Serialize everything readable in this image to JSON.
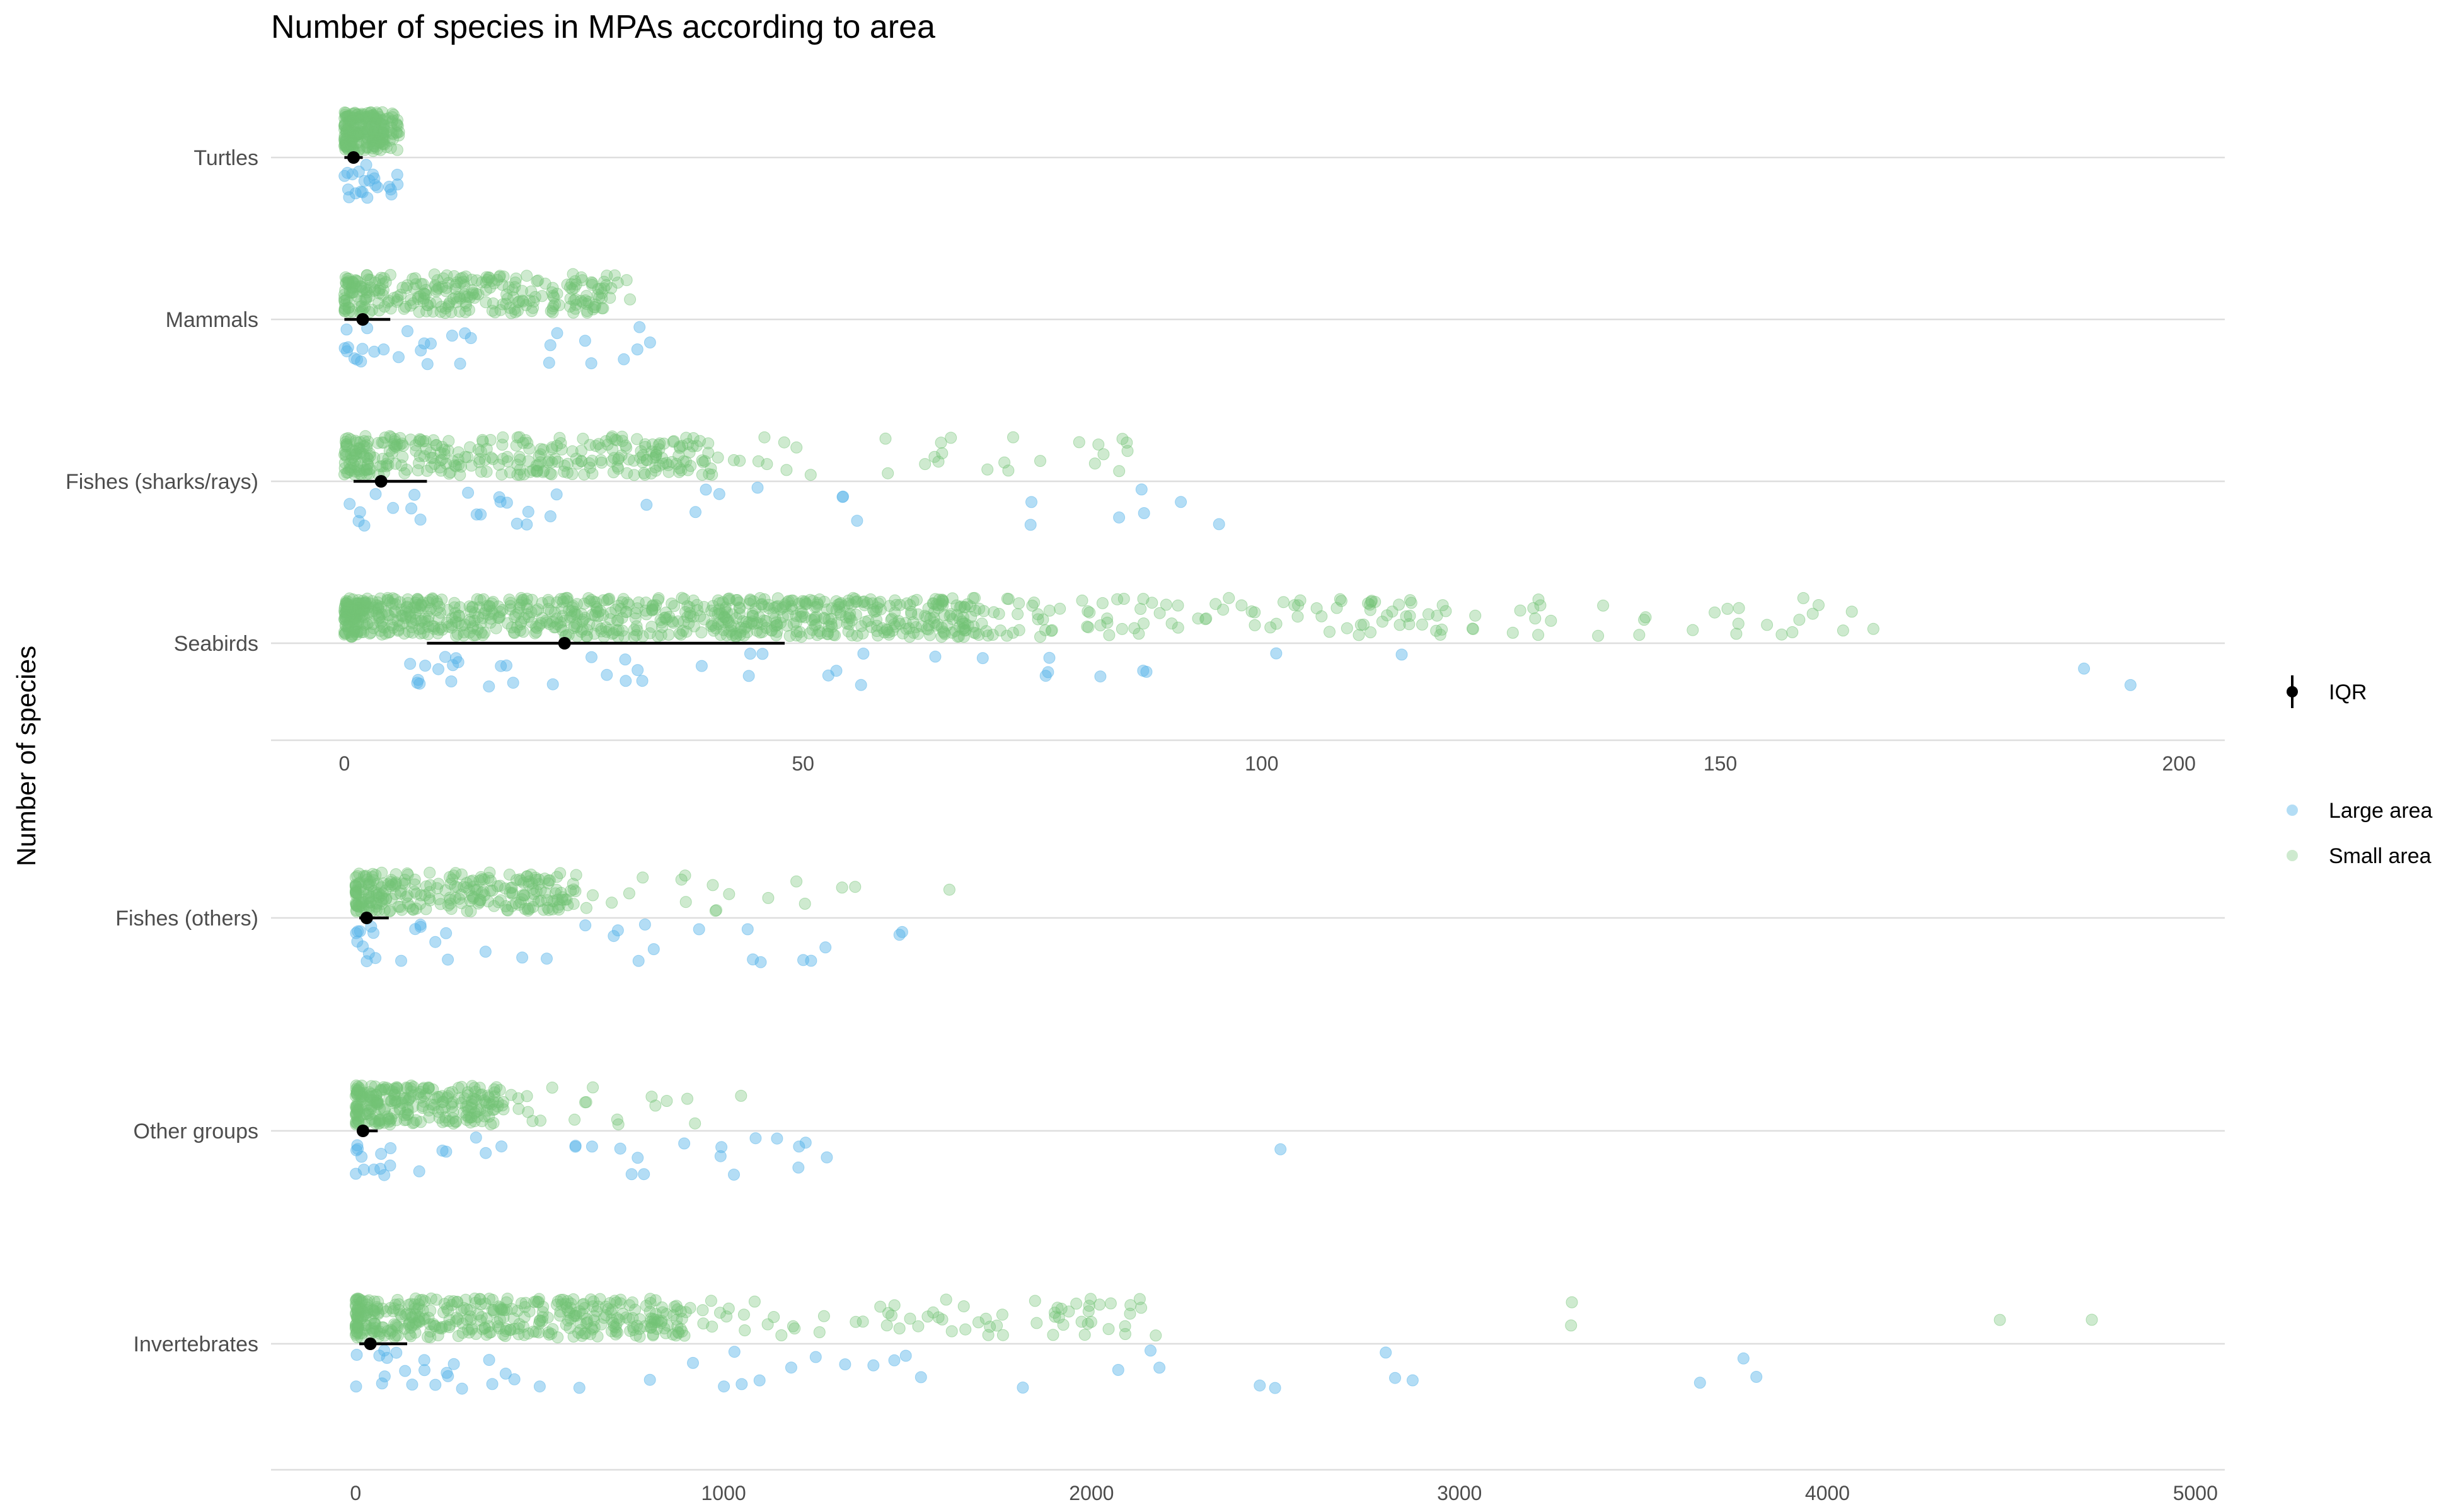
{
  "title": "Number of species in MPAs according to area",
  "ylabel": "Number of species",
  "legend": {
    "iqr_label": "IQR",
    "large_label": "Large area",
    "small_label": "Small area",
    "placement": "right"
  },
  "colors": {
    "large": "#56B4E9",
    "small": "#74C476",
    "summary": "#000000",
    "grid": "#dedede"
  },
  "chart_data": [
    {
      "type": "scatter",
      "panel": "top",
      "xlim": [
        -8,
        205
      ],
      "xticks": [
        0,
        50,
        100,
        150,
        200
      ],
      "xtick_labels": [
        "0",
        "50",
        "100",
        "150",
        "200"
      ],
      "categories": [
        "Turtles",
        "Mammals",
        "Fishes (sharks/rays)",
        "Seabirds"
      ],
      "summary": [
        {
          "category": "Turtles",
          "median": 1,
          "q1": 0,
          "q3": 2
        },
        {
          "category": "Mammals",
          "median": 2,
          "q1": 0,
          "q3": 5
        },
        {
          "category": "Fishes (sharks/rays)",
          "median": 4,
          "q1": 1,
          "q3": 9
        },
        {
          "category": "Seabirds",
          "median": 24,
          "q1": 9,
          "q3": 48
        }
      ],
      "series": [
        {
          "name": "Small area",
          "points": [
            {
              "category": "Turtles",
              "count": 220,
              "range": [
                0,
                6
              ]
            },
            {
              "category": "Mammals",
              "count": 260,
              "range": [
                0,
                30
              ]
            },
            {
              "category": "Mammals",
              "count": 25,
              "range": [
                10,
                34
              ]
            },
            {
              "category": "Fishes (sharks/rays)",
              "count": 300,
              "range": [
                0,
                40
              ]
            },
            {
              "category": "Fishes (sharks/rays)",
              "count": 50,
              "range": [
                30,
                88
              ]
            },
            {
              "category": "Seabirds",
              "count": 700,
              "range": [
                0,
                70
              ]
            },
            {
              "category": "Seabirds",
              "count": 200,
              "range": [
                40,
                120
              ]
            },
            {
              "category": "Seabirds",
              "count": 45,
              "range": [
                110,
                167
              ]
            }
          ]
        },
        {
          "name": "Large area",
          "points": [
            {
              "category": "Turtles",
              "count": 22,
              "range": [
                0,
                6
              ]
            },
            {
              "category": "Mammals",
              "count": 30,
              "range": [
                0,
                36
              ]
            },
            {
              "category": "Fishes (sharks/rays)",
              "count": 35,
              "range": [
                0,
                99
              ]
            },
            {
              "category": "Seabirds",
              "count": 40,
              "range": [
                7,
                120
              ]
            },
            {
              "category": "Seabirds",
              "count": 2,
              "range": [
                189,
                196
              ]
            }
          ]
        }
      ]
    },
    {
      "type": "scatter",
      "panel": "bottom",
      "xlim": [
        -230,
        5080
      ],
      "xticks": [
        0,
        1000,
        2000,
        3000,
        4000,
        5000
      ],
      "xtick_labels": [
        "0",
        "1000",
        "2000",
        "3000",
        "4000",
        "5000"
      ],
      "categories": [
        "Fishes (others)",
        "Other groups",
        "Invertebrates"
      ],
      "summary": [
        {
          "category": "Fishes (others)",
          "median": 30,
          "q1": 10,
          "q3": 90
        },
        {
          "category": "Other groups",
          "median": 20,
          "q1": 5,
          "q3": 60
        },
        {
          "category": "Invertebrates",
          "median": 40,
          "q1": 10,
          "q3": 140
        }
      ],
      "series": [
        {
          "name": "Small area",
          "points": [
            {
              "category": "Fishes (others)",
              "count": 250,
              "range": [
                0,
                600
              ]
            },
            {
              "category": "Fishes (others)",
              "count": 30,
              "range": [
                400,
                1680
              ]
            },
            {
              "category": "Other groups",
              "count": 250,
              "range": [
                0,
                400
              ]
            },
            {
              "category": "Other groups",
              "count": 25,
              "range": [
                300,
                1100
              ]
            },
            {
              "category": "Invertebrates",
              "count": 350,
              "range": [
                0,
                900
              ]
            },
            {
              "category": "Invertebrates",
              "count": 120,
              "range": [
                500,
                2200
              ]
            },
            {
              "category": "Invertebrates",
              "count": 4,
              "range": [
                3300,
                4890
              ]
            }
          ]
        },
        {
          "name": "Large area",
          "points": [
            {
              "category": "Fishes (others)",
              "count": 35,
              "range": [
                0,
                1660
              ]
            },
            {
              "category": "Other groups",
              "count": 35,
              "range": [
                0,
                1300
              ]
            },
            {
              "category": "Other groups",
              "count": 1,
              "range": [
                2510,
                2520
              ]
            },
            {
              "category": "Invertebrates",
              "count": 40,
              "range": [
                0,
                2400
              ]
            },
            {
              "category": "Invertebrates",
              "count": 8,
              "range": [
                2400,
                4150
              ]
            }
          ]
        }
      ]
    }
  ]
}
